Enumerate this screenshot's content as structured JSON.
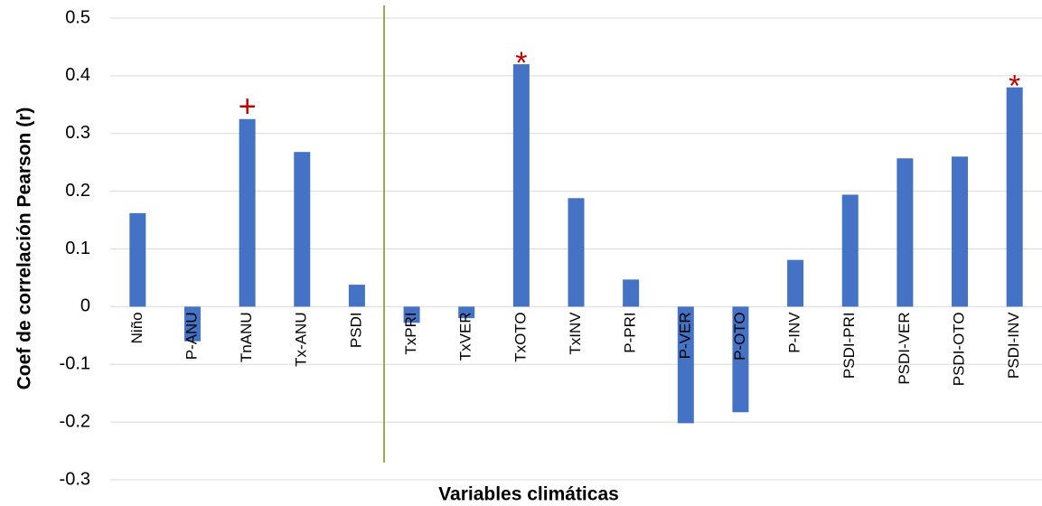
{
  "chart_data": {
    "type": "bar",
    "y_axis_title": "Coef de correlación Pearson (r)",
    "x_axis_title": "Variables climáticas",
    "categories": [
      "Niño",
      "P-ANU",
      "TnANU",
      "Tx-ANU",
      "PSDI",
      "TxPRI",
      "TxVER",
      "TxOTO",
      "TxINV",
      "P-PRI",
      "P-VER",
      "P-OTO",
      "P-INV",
      "PSDI-PRI",
      "PSDI-VER",
      "PSDI-OTO",
      "PSDI-INV"
    ],
    "values": [
      0.162,
      -0.06,
      0.325,
      0.268,
      0.038,
      -0.028,
      -0.02,
      0.42,
      0.188,
      0.047,
      -0.202,
      -0.183,
      0.081,
      0.194,
      0.257,
      0.26,
      0.38
    ],
    "color": "#4472c4",
    "ylim": [
      -0.3,
      0.5
    ],
    "yticks": [
      -0.3,
      -0.2,
      -0.1,
      0,
      0.1,
      0.2,
      0.3,
      0.4,
      0.5
    ],
    "grid": true,
    "annotations": [
      {
        "text": "+",
        "category": "TnANU"
      },
      {
        "text": "*",
        "category": "TxOTO"
      },
      {
        "text": "*",
        "category": "PSDI-INV"
      }
    ]
  }
}
